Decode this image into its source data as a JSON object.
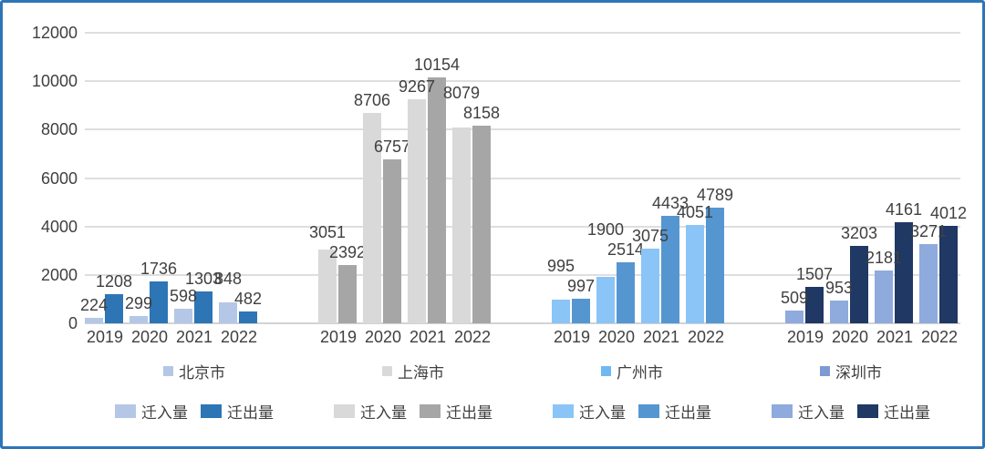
{
  "colors": {
    "frame_border": "#2E75B6",
    "gridline": "#DEDEDE",
    "axis_line": "#D3D3D3",
    "text": "#404040"
  },
  "chart_data": {
    "type": "bar",
    "title": "",
    "xlabel": "",
    "ylabel": "",
    "ylim": [
      0,
      12000
    ],
    "yticks": [
      0,
      2000,
      4000,
      6000,
      8000,
      10000,
      12000
    ],
    "grid": true,
    "legend_position": "bottom",
    "years": [
      "2019",
      "2020",
      "2021",
      "2022"
    ],
    "groups": [
      {
        "city": "北京市",
        "city_swatch_color": "#B4C7E7",
        "series": [
          {
            "name": "迁入量",
            "color": "#B4C7E7",
            "values": [
              224,
              299,
              598,
              848
            ]
          },
          {
            "name": "迁出量",
            "color": "#2E75B6",
            "values": [
              1208,
              1736,
              1303,
              482
            ]
          }
        ]
      },
      {
        "city": "上海市",
        "city_swatch_color": "#D9D9D9",
        "series": [
          {
            "name": "迁入量",
            "color": "#D9D9D9",
            "values": [
              3051,
              8706,
              9267,
              8079
            ]
          },
          {
            "name": "迁出量",
            "color": "#A6A6A6",
            "values": [
              2392,
              6757,
              10154,
              8158
            ]
          }
        ]
      },
      {
        "city": "广州市",
        "city_swatch_color": "#6FB8F4",
        "series": [
          {
            "name": "迁入量",
            "color": "#8BC4F7",
            "values": [
              995,
              1900,
              3075,
              4051
            ]
          },
          {
            "name": "迁出量",
            "color": "#5596D1",
            "values": [
              997,
              2514,
              4433,
              4789
            ]
          }
        ]
      },
      {
        "city": "深圳市",
        "city_swatch_color": "#7E9AD5",
        "series": [
          {
            "name": "迁入量",
            "color": "#8FAADC",
            "values": [
              509,
              953,
              2181,
              3271
            ]
          },
          {
            "name": "迁出量",
            "color": "#1F3864",
            "values": [
              1507,
              3203,
              4161,
              4012
            ]
          }
        ]
      }
    ]
  }
}
